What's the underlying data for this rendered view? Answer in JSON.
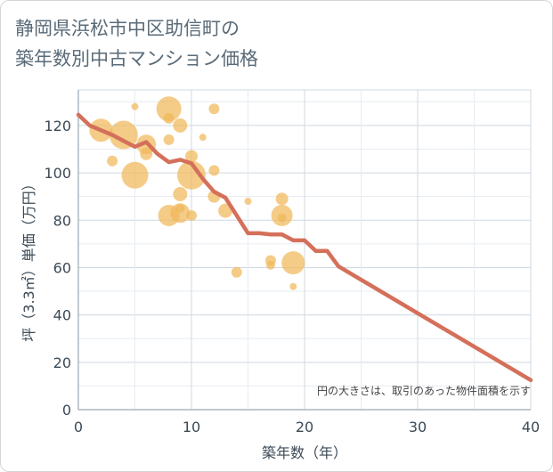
{
  "chart_data": {
    "type": "scatter",
    "title": "静岡県浜松市中区助信町の\n築年数別中古マンション価格",
    "xlabel": "築年数（年）",
    "ylabel": "坪（3.3㎡）単価（万円）",
    "note": "円の大きさは、取引のあった物件面積を示す",
    "xlim": [
      0,
      40
    ],
    "ylim": [
      0,
      135
    ],
    "xticks": [
      "0",
      "10",
      "20",
      "30",
      "40"
    ],
    "yticks": [
      "0",
      "20",
      "40",
      "60",
      "80",
      "100",
      "120"
    ],
    "grid": true,
    "colors": {
      "bubble": "#f0b85a",
      "line": "#d4705a"
    },
    "points": [
      {
        "x": 2,
        "y": 118,
        "size": 12
      },
      {
        "x": 3,
        "y": 105,
        "size": 5
      },
      {
        "x": 4,
        "y": 116,
        "size": 15
      },
      {
        "x": 5,
        "y": 128,
        "size": 3
      },
      {
        "x": 5,
        "y": 99,
        "size": 14
      },
      {
        "x": 6,
        "y": 112,
        "size": 10
      },
      {
        "x": 6,
        "y": 108,
        "size": 6
      },
      {
        "x": 8,
        "y": 127,
        "size": 13
      },
      {
        "x": 8,
        "y": 123,
        "size": 5
      },
      {
        "x": 8,
        "y": 114,
        "size": 5
      },
      {
        "x": 8,
        "y": 82,
        "size": 11
      },
      {
        "x": 9,
        "y": 120,
        "size": 7
      },
      {
        "x": 9,
        "y": 91,
        "size": 7
      },
      {
        "x": 9,
        "y": 83,
        "size": 10
      },
      {
        "x": 9,
        "y": 85,
        "size": 4
      },
      {
        "x": 10,
        "y": 107,
        "size": 6
      },
      {
        "x": 10,
        "y": 99,
        "size": 15
      },
      {
        "x": 10,
        "y": 82,
        "size": 5
      },
      {
        "x": 11,
        "y": 115,
        "size": 3
      },
      {
        "x": 12,
        "y": 127,
        "size": 5
      },
      {
        "x": 12,
        "y": 101,
        "size": 5
      },
      {
        "x": 12,
        "y": 90,
        "size": 6
      },
      {
        "x": 13,
        "y": 84,
        "size": 7
      },
      {
        "x": 14,
        "y": 58,
        "size": 5
      },
      {
        "x": 15,
        "y": 88,
        "size": 3
      },
      {
        "x": 17,
        "y": 63,
        "size": 5
      },
      {
        "x": 17,
        "y": 61,
        "size": 4
      },
      {
        "x": 18,
        "y": 89,
        "size": 6
      },
      {
        "x": 18,
        "y": 82,
        "size": 11
      },
      {
        "x": 18,
        "y": 81,
        "size": 4
      },
      {
        "x": 19,
        "y": 62,
        "size": 12
      },
      {
        "x": 19,
        "y": 52,
        "size": 3
      }
    ],
    "line": {
      "x": [
        0,
        1,
        2,
        3,
        4,
        5,
        6,
        7,
        8,
        9,
        10,
        11,
        12,
        13,
        14,
        15,
        16,
        17,
        18,
        19,
        20,
        21,
        22,
        23,
        40
      ],
      "y": [
        124.5,
        120,
        118,
        116,
        113.5,
        111,
        113,
        108,
        104.5,
        105.5,
        104,
        97.5,
        92,
        89.5,
        82,
        74.5,
        74.5,
        74,
        74,
        71.5,
        71.5,
        67,
        67,
        60.5,
        12.5
      ]
    }
  }
}
